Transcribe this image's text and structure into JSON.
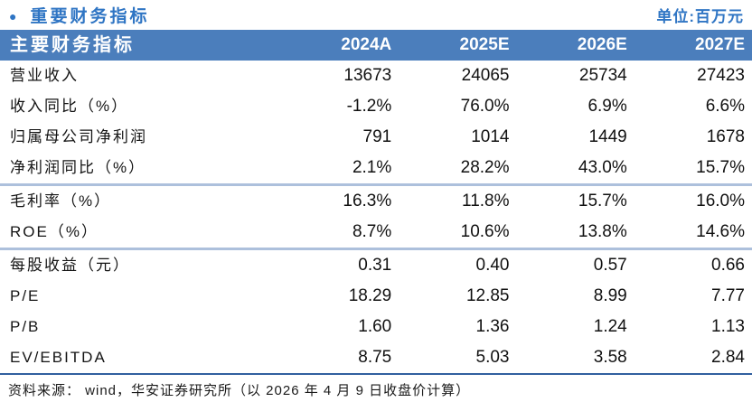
{
  "page": {
    "title": "重要财务指标",
    "unit_label": "单位:百万元",
    "source_note": "资料来源： wind，华安证券研究所（以 2026 年 4 月 9 日收盘价计算）"
  },
  "icons": {
    "bullet": "●"
  },
  "colors": {
    "header_bg": "#4b7ebc",
    "title_blue": "#2f75c4",
    "divider_light": "#adc0dc",
    "divider_dark": "#31609f"
  },
  "table": {
    "header": {
      "label": "主要财务指标",
      "columns": [
        "2024A",
        "2025E",
        "2026E",
        "2027E"
      ]
    },
    "rows": [
      {
        "label": "营业收入",
        "values": [
          "13673",
          "24065",
          "25734",
          "27423"
        ],
        "group": 1
      },
      {
        "label": "收入同比（%）",
        "values": [
          "-1.2%",
          "76.0%",
          "6.9%",
          "6.6%"
        ],
        "group": 1
      },
      {
        "label": "归属母公司净利润",
        "values": [
          "791",
          "1014",
          "1449",
          "1678"
        ],
        "group": 1
      },
      {
        "label": "净利润同比（%）",
        "values": [
          "2.1%",
          "28.2%",
          "43.0%",
          "15.7%"
        ],
        "group": 1
      },
      {
        "label": "毛利率（%）",
        "values": [
          "16.3%",
          "11.8%",
          "15.7%",
          "16.0%"
        ],
        "group": 2
      },
      {
        "label": "ROE（%）",
        "values": [
          "8.7%",
          "10.6%",
          "13.8%",
          "14.6%"
        ],
        "group": 2
      },
      {
        "label": "每股收益（元）",
        "values": [
          "0.31",
          "0.40",
          "0.57",
          "0.66"
        ],
        "group": 3
      },
      {
        "label": "P/E",
        "values": [
          "18.29",
          "12.85",
          "8.99",
          "7.77"
        ],
        "group": 3
      },
      {
        "label": "P/B",
        "values": [
          "1.60",
          "1.36",
          "1.24",
          "1.13"
        ],
        "group": 3
      },
      {
        "label": "EV/EBITDA",
        "values": [
          "8.75",
          "5.03",
          "3.58",
          "2.84"
        ],
        "group": 3
      }
    ]
  }
}
